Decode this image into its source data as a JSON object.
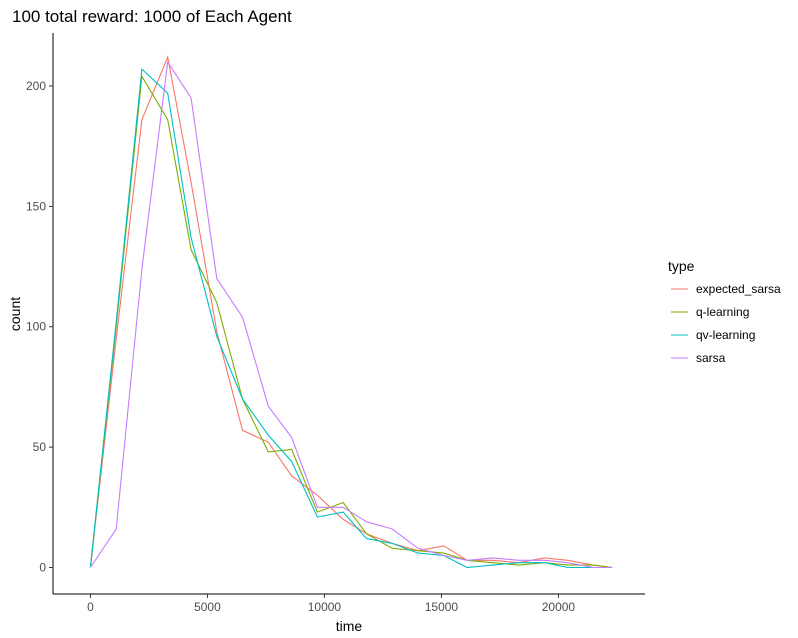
{
  "chart_data": {
    "type": "line",
    "title": "100 total reward: 1000 of Each Agent",
    "xlabel": "time",
    "ylabel": "count",
    "xlim": [
      -1600,
      23700
    ],
    "ylim": [
      -11,
      222
    ],
    "x_ticks": [
      0,
      5000,
      10000,
      15000,
      20000
    ],
    "y_ticks": [
      0,
      50,
      100,
      150,
      200
    ],
    "grid": false,
    "legend": {
      "title": "type",
      "position": "right"
    },
    "series": [
      {
        "name": "expected_sarsa",
        "color": "#F8766D",
        "x": [
          0,
          1100,
          2200,
          3300,
          4300,
          5400,
          6500,
          7600,
          8600,
          9700,
          10800,
          11800,
          12900,
          14000,
          15100,
          16100,
          17200,
          18300,
          19400,
          20400,
          21500,
          22300
        ],
        "y": [
          0,
          95,
          186,
          212,
          160,
          98,
          57,
          52,
          38,
          30,
          20,
          14,
          10,
          7,
          9,
          3,
          3,
          2,
          4,
          3,
          1,
          0
        ]
      },
      {
        "name": "q-learning",
        "color": "#7CAE00",
        "x": [
          0,
          1100,
          2200,
          3300,
          4300,
          5400,
          6500,
          7600,
          8600,
          9700,
          10800,
          11800,
          12900,
          14000,
          15100,
          16100,
          17200,
          18300,
          19400,
          20400,
          21500,
          22300
        ],
        "y": [
          0,
          100,
          204,
          186,
          132,
          110,
          70,
          48,
          49,
          23,
          27,
          14,
          8,
          7,
          6,
          3,
          2,
          1,
          2,
          1,
          1,
          0
        ]
      },
      {
        "name": "qv-learning",
        "color": "#00BFC4",
        "x": [
          0,
          1100,
          2200,
          3300,
          4300,
          5400,
          6500,
          7600,
          8600,
          9700,
          10800,
          11800,
          12900,
          14000,
          15100,
          16100,
          17200,
          18300,
          19400,
          20400,
          21500,
          22300
        ],
        "y": [
          0,
          102,
          207,
          197,
          137,
          96,
          70,
          55,
          44,
          21,
          23,
          12,
          10,
          6,
          5,
          0,
          1,
          2,
          2,
          0,
          0,
          0
        ]
      },
      {
        "name": "sarsa",
        "color": "#C77CFF",
        "x": [
          0,
          1100,
          2200,
          3300,
          4300,
          5400,
          6500,
          7600,
          8600,
          9700,
          10800,
          11800,
          12900,
          14000,
          15100,
          16100,
          17200,
          18300,
          19400,
          20400,
          21500,
          22300
        ],
        "y": [
          0,
          16,
          124,
          210,
          195,
          120,
          104,
          67,
          54,
          25,
          25,
          19,
          16,
          8,
          5,
          3,
          4,
          3,
          3,
          2,
          0,
          0
        ]
      }
    ]
  }
}
